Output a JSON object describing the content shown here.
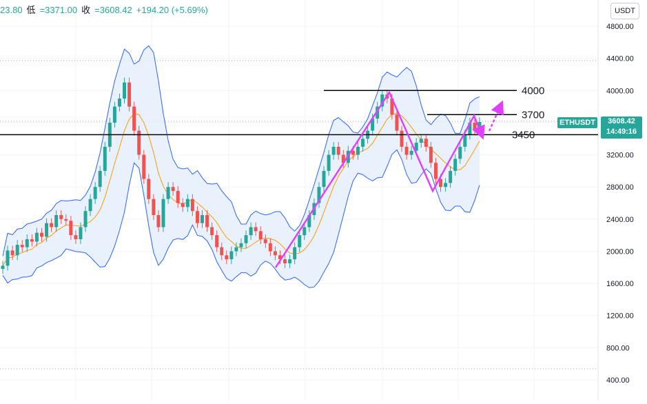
{
  "header": {
    "open_partial": "23.80",
    "low_label": "低",
    "low_value": "=3371.00",
    "close_label": "收",
    "close_value": "=3608.42",
    "change": "+194.20 (+5.69%)"
  },
  "currency_button": "USDT",
  "symbol_tag": "ETHUSDT",
  "last_price": "3608.42",
  "countdown": "14:49:16",
  "colors": {
    "up": "#26a69a",
    "down": "#ef5350",
    "band": "#2962ff",
    "band_fill": "#e3effb",
    "middle_line": "#ff9800",
    "annotation": "#e040fb",
    "level_line": "#000000"
  },
  "chart_data": {
    "type": "candlestick",
    "symbol": "ETHUSDT",
    "y_axis": {
      "min": 400,
      "max": 4800,
      "ticks": [
        4800,
        4400,
        4000,
        3600,
        3200,
        2800,
        2400,
        2000,
        1600,
        1200,
        800,
        400
      ],
      "tick_labels": [
        "4800.00",
        "4400.00",
        "4000.00",
        "3600.00",
        "3200.00",
        "2800.00",
        "2400.00",
        "2000.00",
        "1600.00",
        "1200.00",
        "800.00",
        "400.00"
      ]
    },
    "horizontal_levels": [
      {
        "value": 4000,
        "label": "4000"
      },
      {
        "value": 3700,
        "label": "3700"
      },
      {
        "value": 3450,
        "label": "3450"
      }
    ],
    "closes": [
      1820,
      2010,
      1950,
      2080,
      2050,
      2150,
      2120,
      2230,
      2180,
      2350,
      2300,
      2450,
      2400,
      2380,
      2200,
      2150,
      2300,
      2500,
      2650,
      2800,
      3000,
      3300,
      3600,
      3800,
      3900,
      4100,
      3800,
      3500,
      3200,
      2900,
      2650,
      2450,
      2300,
      2650,
      2800,
      2750,
      2600,
      2550,
      2650,
      2500,
      2350,
      2450,
      2300,
      2200,
      2050,
      1950,
      1900,
      2000,
      2050,
      2100,
      2200,
      2300,
      2250,
      2150,
      2100,
      2000,
      1950,
      1900,
      1850,
      1900,
      2050,
      2200,
      2300,
      2450,
      2600,
      2800,
      3000,
      3200,
      3300,
      3200,
      3100,
      3250,
      3200,
      3300,
      3400,
      3500,
      3650,
      3800,
      3950,
      3900,
      3700,
      3500,
      3300,
      3200,
      3250,
      3350,
      3400,
      3300,
      3100,
      2900,
      2800,
      2850,
      3000,
      3150,
      3300,
      3450,
      3600,
      3500,
      3608
    ]
  },
  "annotations": {
    "levels": [
      "4000",
      "3700",
      "3450"
    ]
  }
}
